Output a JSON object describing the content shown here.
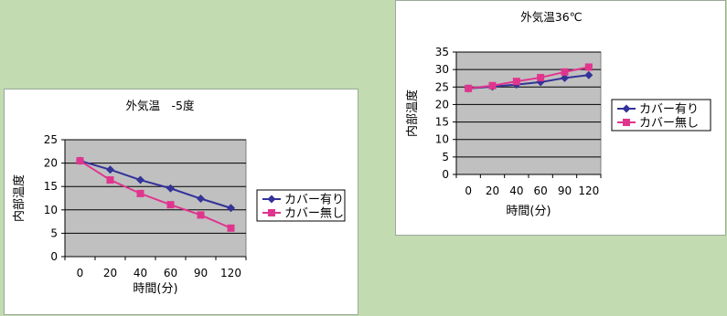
{
  "colors": {
    "background": "#c2dbb0",
    "plot_area": "#c0c0c0",
    "series_with_cover": "#333399",
    "series_without_cover": "#e0358e"
  },
  "chart_data": [
    {
      "type": "line",
      "title": "外気温　-5度",
      "xlabel": "時間(分)",
      "ylabel": "内部温度",
      "categories": [
        "0",
        "20",
        "40",
        "60",
        "90",
        "120"
      ],
      "ylim": [
        0,
        25
      ],
      "yticks": [
        0,
        5,
        10,
        15,
        20,
        25
      ],
      "grid": true,
      "legend": "right",
      "series": [
        {
          "name": "カバー有り",
          "marker": "diamond",
          "values": [
            20.5,
            18.6,
            16.4,
            14.6,
            12.4,
            10.4
          ]
        },
        {
          "name": "カバー無し",
          "marker": "square",
          "values": [
            20.5,
            16.4,
            13.5,
            11.1,
            8.9,
            6.1
          ]
        }
      ]
    },
    {
      "type": "line",
      "title": "外気温36℃",
      "xlabel": "時間(分)",
      "ylabel": "内部温度",
      "categories": [
        "0",
        "20",
        "40",
        "60",
        "90",
        "120"
      ],
      "ylim": [
        0,
        35
      ],
      "yticks": [
        0,
        5,
        10,
        15,
        20,
        25,
        30,
        35
      ],
      "grid": true,
      "legend": "right",
      "series": [
        {
          "name": "カバー有り",
          "marker": "diamond",
          "values": [
            24.6,
            25.1,
            25.7,
            26.4,
            27.6,
            28.4
          ]
        },
        {
          "name": "カバー無し",
          "marker": "square",
          "values": [
            24.6,
            25.4,
            26.6,
            27.7,
            29.3,
            30.7
          ]
        }
      ]
    }
  ]
}
